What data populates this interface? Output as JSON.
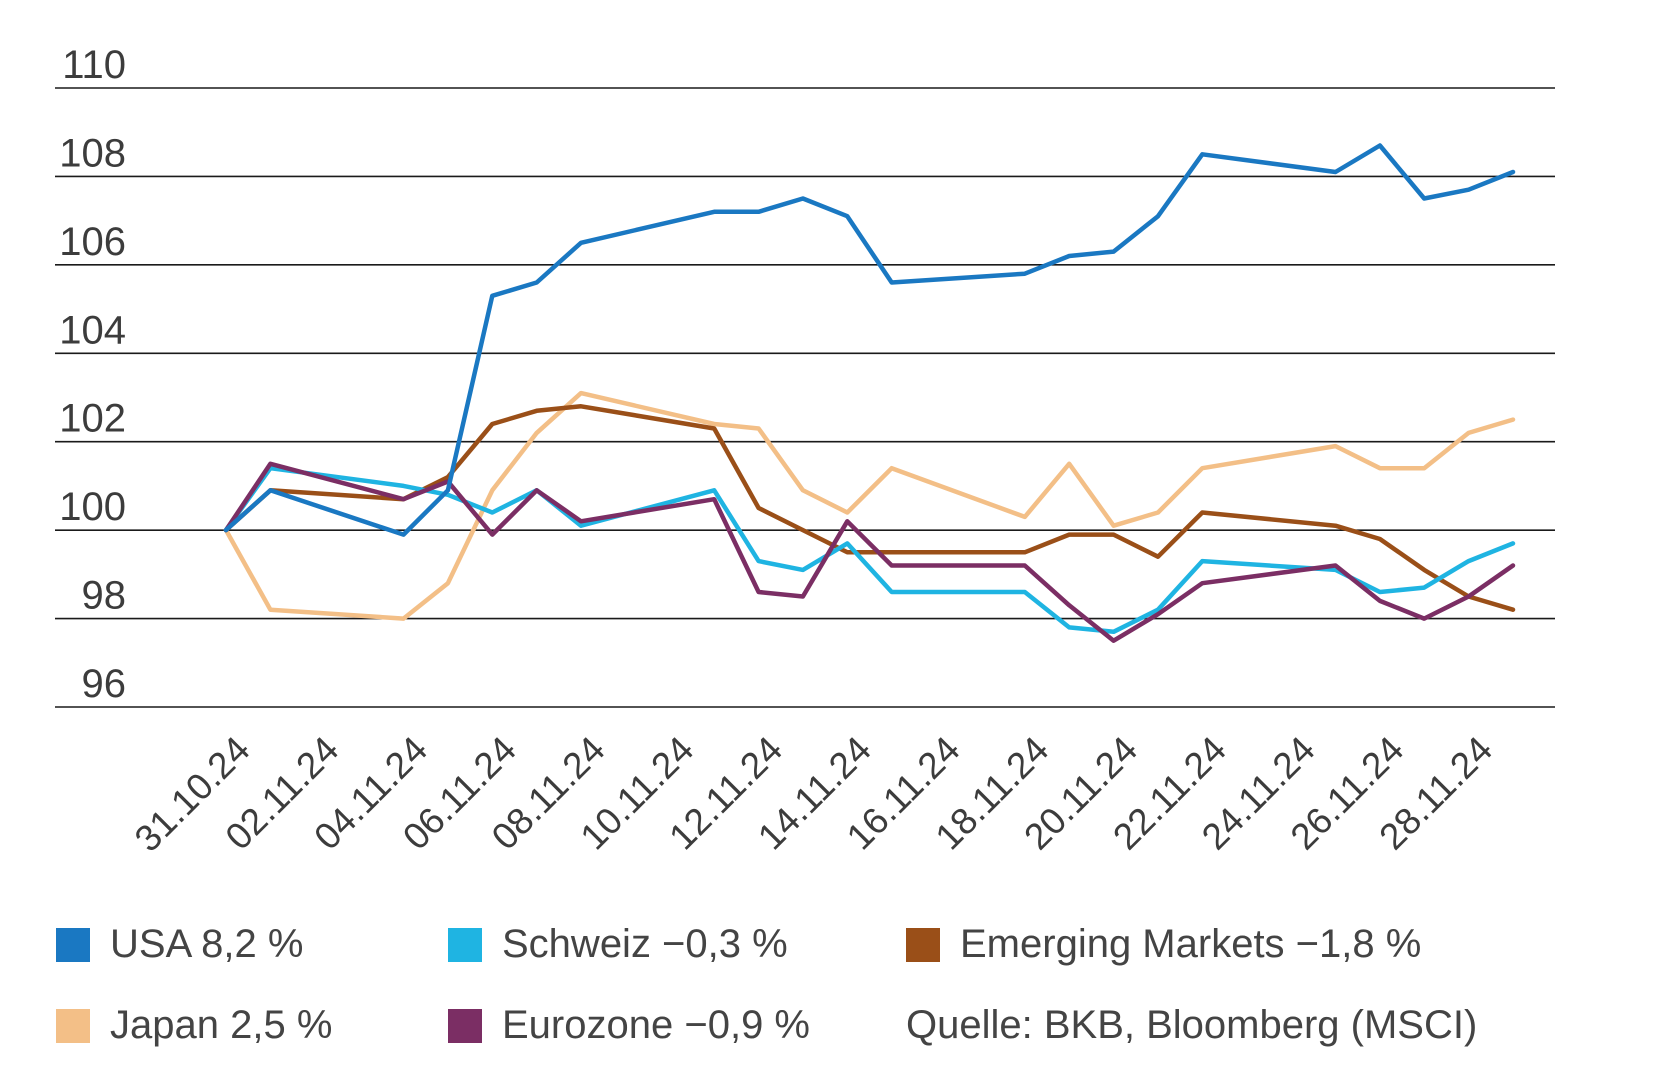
{
  "chart_data": {
    "type": "line",
    "title": "",
    "xlabel": "",
    "ylabel": "",
    "ylim": [
      96,
      110
    ],
    "y_ticks": [
      96,
      98,
      100,
      102,
      104,
      106,
      108,
      110
    ],
    "y_tick_labels": [
      "96",
      "98",
      "100",
      "102",
      "104",
      "106",
      "108",
      "110"
    ],
    "grid": "horizontal",
    "x_dates": [
      "31.10.24",
      "01.11.24",
      "04.11.24",
      "05.11.24",
      "06.11.24",
      "07.11.24",
      "08.11.24",
      "11.11.24",
      "12.11.24",
      "13.11.24",
      "14.11.24",
      "15.11.24",
      "18.11.24",
      "19.11.24",
      "20.11.24",
      "21.11.24",
      "22.11.24",
      "25.11.24",
      "26.11.24",
      "27.11.24",
      "28.11.24",
      "29.11.24"
    ],
    "x_tick_labels": [
      "31.10.24",
      "02.11.24",
      "04.11.24",
      "06.11.24",
      "08.11.24",
      "10.11.24",
      "12.11.24",
      "14.11.24",
      "16.11.24",
      "18.11.24",
      "20.11.24",
      "22.11.24",
      "24.11.24",
      "26.11.24",
      "28.11.24"
    ],
    "series": [
      {
        "name": "USA",
        "change": "8,2 %",
        "color": "#1a78c2",
        "values": [
          100.0,
          100.9,
          99.9,
          100.9,
          105.3,
          105.6,
          106.5,
          107.2,
          107.2,
          107.5,
          107.1,
          105.6,
          105.8,
          106.2,
          106.3,
          107.1,
          108.5,
          108.1,
          108.7,
          107.5,
          107.7,
          108.1
        ]
      },
      {
        "name": "Schweiz",
        "change": "−0,3 %",
        "color": "#1fb4e2",
        "values": [
          100.0,
          101.4,
          101.0,
          100.8,
          100.4,
          100.9,
          100.1,
          100.9,
          99.3,
          99.1,
          99.7,
          98.6,
          98.6,
          97.8,
          97.7,
          98.2,
          99.3,
          99.1,
          98.6,
          98.7,
          99.3,
          99.7
        ]
      },
      {
        "name": "Emerging Markets",
        "change": "−1,8 %",
        "color": "#9a4f18",
        "values": [
          100.0,
          100.9,
          100.7,
          101.2,
          102.4,
          102.7,
          102.8,
          102.3,
          100.5,
          100.0,
          99.5,
          99.5,
          99.5,
          99.9,
          99.9,
          99.4,
          100.4,
          100.1,
          99.8,
          99.1,
          98.5,
          98.2
        ]
      },
      {
        "name": "Japan",
        "change": "2,5 %",
        "color": "#f3bf87",
        "values": [
          100.0,
          98.2,
          98.0,
          98.8,
          100.9,
          102.2,
          103.1,
          102.4,
          102.3,
          100.9,
          100.4,
          101.4,
          100.3,
          101.5,
          100.1,
          100.4,
          101.4,
          101.9,
          101.4,
          101.4,
          102.2,
          102.5
        ]
      },
      {
        "name": "Eurozone",
        "change": "−0,9 %",
        "color": "#7b2e64",
        "values": [
          100.0,
          101.5,
          100.7,
          101.1,
          99.9,
          100.9,
          100.2,
          100.7,
          98.6,
          98.5,
          100.2,
          99.2,
          99.2,
          98.3,
          97.5,
          98.1,
          98.8,
          99.2,
          98.4,
          98.0,
          98.5,
          99.2
        ]
      }
    ]
  },
  "legend": {
    "items": [
      {
        "label": "USA 8,2 %",
        "color": "#1a78c2"
      },
      {
        "label": "Schweiz −0,3 %",
        "color": "#1fb4e2"
      },
      {
        "label": "Emerging Markets −1,8 %",
        "color": "#9a4f18"
      },
      {
        "label": "Japan 2,5 %",
        "color": "#f3bf87"
      },
      {
        "label": "Eurozone −0,9 %",
        "color": "#7b2e64"
      }
    ]
  },
  "source": "Quelle: BKB, Bloomberg (MSCI)"
}
